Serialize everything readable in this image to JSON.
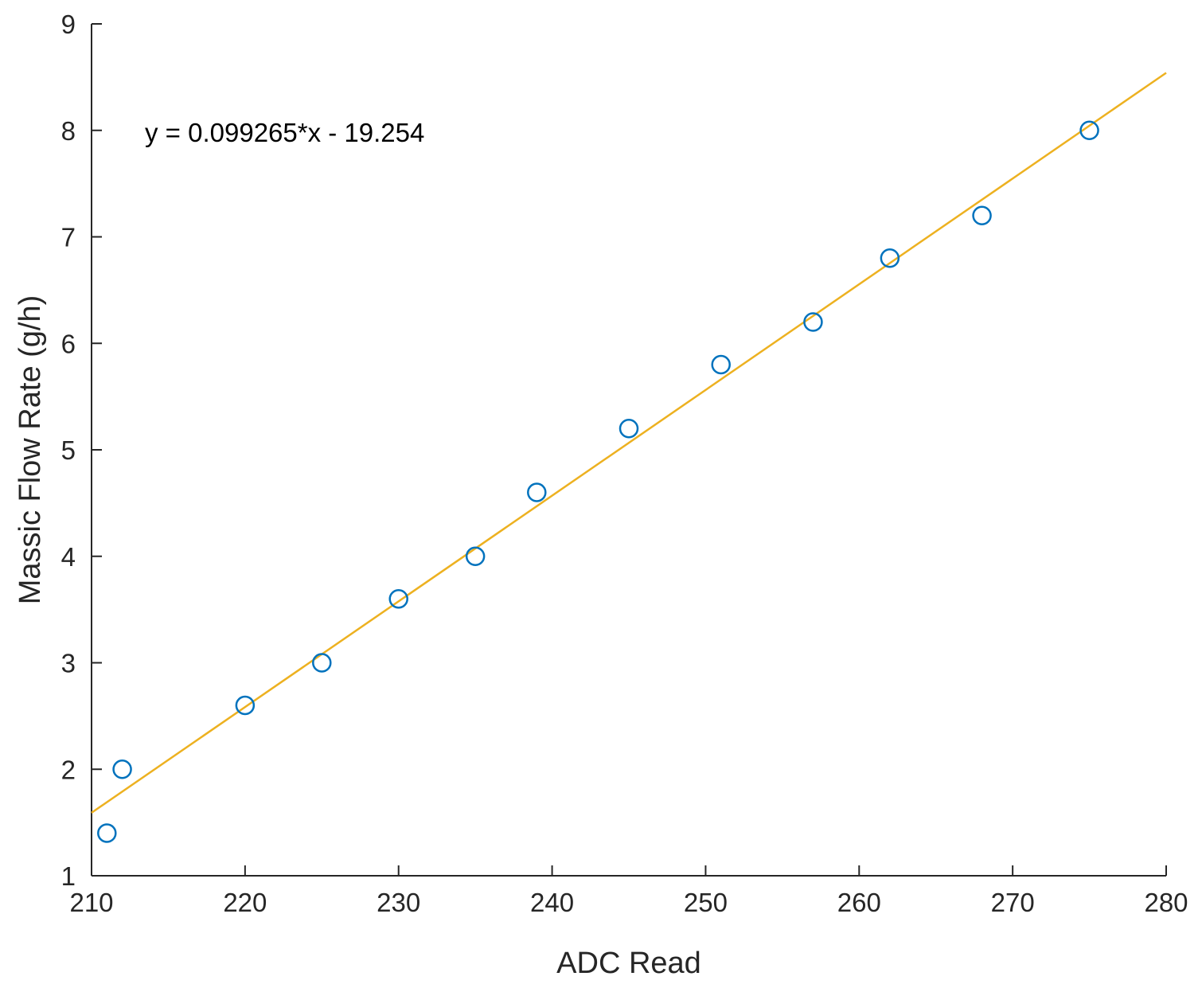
{
  "chart_data": {
    "type": "scatter",
    "title": "",
    "xlabel": "ADC Read",
    "ylabel": "Massic Flow Rate (g/h)",
    "xlim": [
      210,
      280
    ],
    "ylim": [
      1,
      9
    ],
    "xticks": [
      "210",
      "220",
      "230",
      "240",
      "250",
      "260",
      "270",
      "280"
    ],
    "yticks": [
      "1",
      "2",
      "3",
      "4",
      "5",
      "6",
      "7",
      "8",
      "9"
    ],
    "grid": false,
    "legend": "none",
    "annotation": "y = 0.099265*x - 19.254",
    "series": [
      {
        "type": "scatter",
        "marker": "open-circle",
        "color": "#0072BD",
        "x": [
          211,
          212,
          220,
          225,
          230,
          235,
          239,
          245,
          251,
          257,
          262,
          268,
          275
        ],
        "y": [
          1.4,
          2.0,
          2.6,
          3.0,
          3.6,
          4.0,
          4.6,
          5.2,
          5.8,
          6.2,
          6.8,
          7.2,
          8.0
        ]
      },
      {
        "type": "line",
        "color": "#EDB120",
        "slope": 0.099265,
        "intercept": -19.254
      }
    ]
  }
}
